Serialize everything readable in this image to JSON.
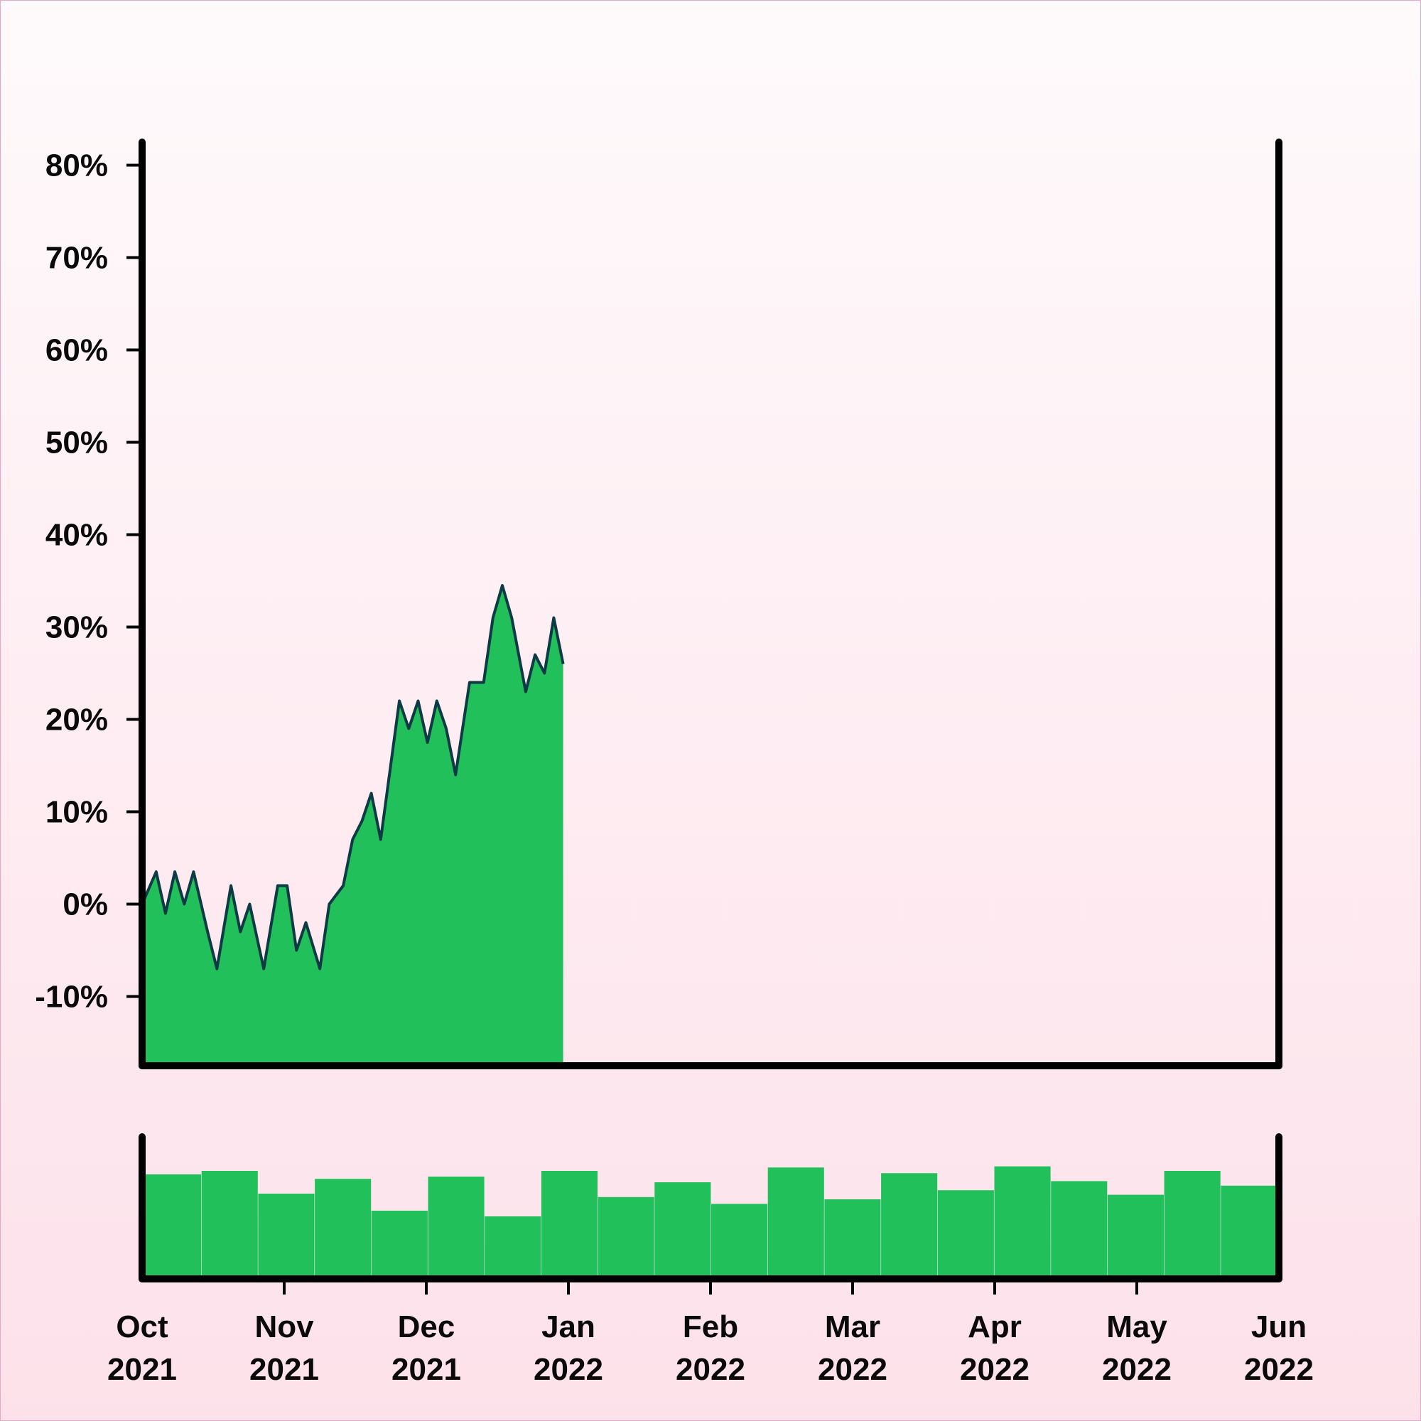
{
  "chart_data": [
    {
      "type": "area",
      "title": "",
      "xlabel": "",
      "ylabel": "",
      "x_range": [
        "2021-10-01",
        "2022-06-01"
      ],
      "ylim": [
        -17.5,
        82.5
      ],
      "y_unit": "%",
      "y_ticks": [
        -10,
        0,
        10,
        20,
        30,
        40,
        50,
        60,
        70,
        80
      ],
      "y_tick_labels": [
        "-10%",
        "0%",
        "10%",
        "20%",
        "30%",
        "40%",
        "50%",
        "60%",
        "70%",
        "80%"
      ],
      "grid": false,
      "legend": "none",
      "colors": {
        "fill": "#22c05a",
        "line": "#0c3b45"
      },
      "series": [
        {
          "points": [
            [
              "2021-10-01",
              0
            ],
            [
              "2021-10-04",
              3.5
            ],
            [
              "2021-10-06",
              -1
            ],
            [
              "2021-10-08",
              3.5
            ],
            [
              "2021-10-10",
              0
            ],
            [
              "2021-10-12",
              3.5
            ],
            [
              "2021-10-15",
              -3
            ],
            [
              "2021-10-17",
              -7
            ],
            [
              "2021-10-20",
              2
            ],
            [
              "2021-10-22",
              -3
            ],
            [
              "2021-10-24",
              0
            ],
            [
              "2021-10-27",
              -7
            ],
            [
              "2021-10-30",
              2
            ],
            [
              "2021-11-01",
              2
            ],
            [
              "2021-11-03",
              -5
            ],
            [
              "2021-11-05",
              -2
            ],
            [
              "2021-11-08",
              -7
            ],
            [
              "2021-11-10",
              0
            ],
            [
              "2021-11-13",
              2
            ],
            [
              "2021-11-15",
              7
            ],
            [
              "2021-11-17",
              9
            ],
            [
              "2021-11-19",
              12
            ],
            [
              "2021-11-21",
              7
            ],
            [
              "2021-11-25",
              22
            ],
            [
              "2021-11-27",
              19
            ],
            [
              "2021-11-29",
              22
            ],
            [
              "2021-12-01",
              17.5
            ],
            [
              "2021-12-03",
              22
            ],
            [
              "2021-12-05",
              19
            ],
            [
              "2021-12-07",
              14
            ],
            [
              "2021-12-10",
              24
            ],
            [
              "2021-12-13",
              24
            ],
            [
              "2021-12-15",
              31
            ],
            [
              "2021-12-17",
              34.5
            ],
            [
              "2021-12-19",
              31
            ],
            [
              "2021-12-22",
              23
            ],
            [
              "2021-12-24",
              27
            ],
            [
              "2021-12-26",
              25
            ],
            [
              "2021-12-28",
              31
            ],
            [
              "2021-12-30",
              26
            ]
          ]
        }
      ],
      "volume": {
        "type": "bar",
        "values_relative": [
          0.92,
          0.95,
          0.75,
          0.88,
          0.6,
          0.9,
          0.55,
          0.95,
          0.72,
          0.85,
          0.66,
          0.98,
          0.7,
          0.93,
          0.78,
          0.99,
          0.86,
          0.74,
          0.95,
          0.82
        ]
      }
    }
  ],
  "x_axis": {
    "ticks": [
      {
        "month": "Oct",
        "year": "2021"
      },
      {
        "month": "Nov",
        "year": "2021"
      },
      {
        "month": "Dec",
        "year": "2021"
      },
      {
        "month": "Jan",
        "year": "2022"
      },
      {
        "month": "Feb",
        "year": "2022"
      },
      {
        "month": "Mar",
        "year": "2022"
      },
      {
        "month": "Apr",
        "year": "2022"
      },
      {
        "month": "May",
        "year": "2022"
      },
      {
        "month": "Jun",
        "year": "2022"
      }
    ]
  }
}
